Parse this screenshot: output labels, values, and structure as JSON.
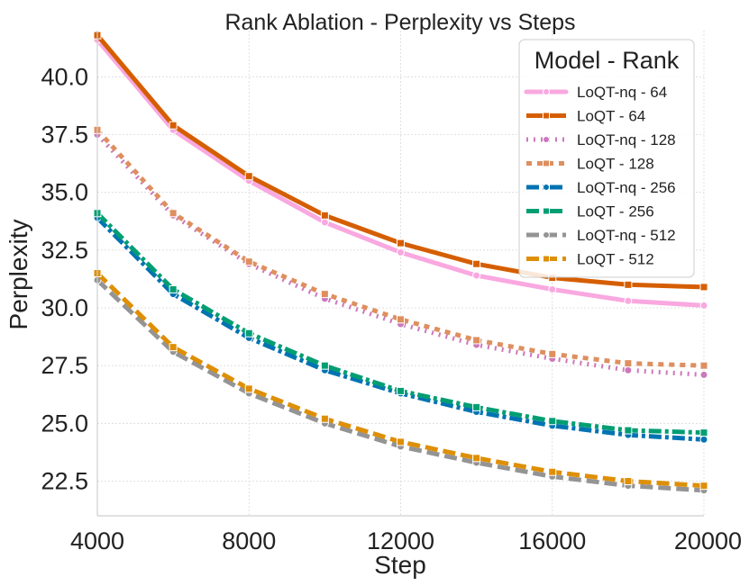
{
  "chart_data": {
    "type": "line",
    "title": "Rank Ablation - Perplexity vs Steps",
    "xlabel": "Step",
    "ylabel": "Perplexity",
    "x": [
      4000,
      6000,
      8000,
      10000,
      12000,
      14000,
      16000,
      18000,
      20000
    ],
    "xlim": [
      4000,
      20000
    ],
    "ylim": [
      21.0,
      42.0
    ],
    "xticks": [
      "4000",
      "8000",
      "12000",
      "16000",
      "20000"
    ],
    "yticks": [
      "22.5",
      "25.0",
      "27.5",
      "30.0",
      "32.5",
      "35.0",
      "37.5",
      "40.0"
    ],
    "grid": true,
    "legend": {
      "title": "Model - Rank",
      "placement": "top-right"
    },
    "series": [
      {
        "name": "LoQT-nq - 64",
        "color": "#f9a8e0",
        "values": [
          41.6,
          37.7,
          35.5,
          33.7,
          32.4,
          31.4,
          30.8,
          30.3,
          30.1
        ]
      },
      {
        "name": "LoQT - 64",
        "color": "#d55e00",
        "values": [
          41.8,
          37.9,
          35.7,
          34.0,
          32.8,
          31.9,
          31.3,
          31.0,
          30.9
        ]
      },
      {
        "name": "LoQT-nq - 128",
        "color": "#cc78bc",
        "values": [
          37.5,
          34.0,
          31.9,
          30.4,
          29.3,
          28.4,
          27.8,
          27.3,
          27.1
        ]
      },
      {
        "name": "LoQT - 128",
        "color": "#de8f5f",
        "values": [
          37.7,
          34.1,
          32.0,
          30.6,
          29.5,
          28.6,
          28.0,
          27.6,
          27.5
        ]
      },
      {
        "name": "LoQT-nq - 256",
        "color": "#0173b2",
        "values": [
          33.9,
          30.6,
          28.7,
          27.3,
          26.3,
          25.5,
          24.9,
          24.5,
          24.3
        ]
      },
      {
        "name": "LoQT - 256",
        "color": "#029e73",
        "values": [
          34.1,
          30.8,
          28.9,
          27.5,
          26.4,
          25.7,
          25.1,
          24.7,
          24.6
        ]
      },
      {
        "name": "LoQT-nq - 512",
        "color": "#949494",
        "values": [
          31.2,
          28.1,
          26.3,
          25.0,
          24.0,
          23.3,
          22.7,
          22.3,
          22.1
        ]
      },
      {
        "name": "LoQT - 512",
        "color": "#de8f05",
        "values": [
          31.5,
          28.3,
          26.5,
          25.2,
          24.2,
          23.5,
          22.9,
          22.5,
          22.3
        ]
      }
    ]
  }
}
